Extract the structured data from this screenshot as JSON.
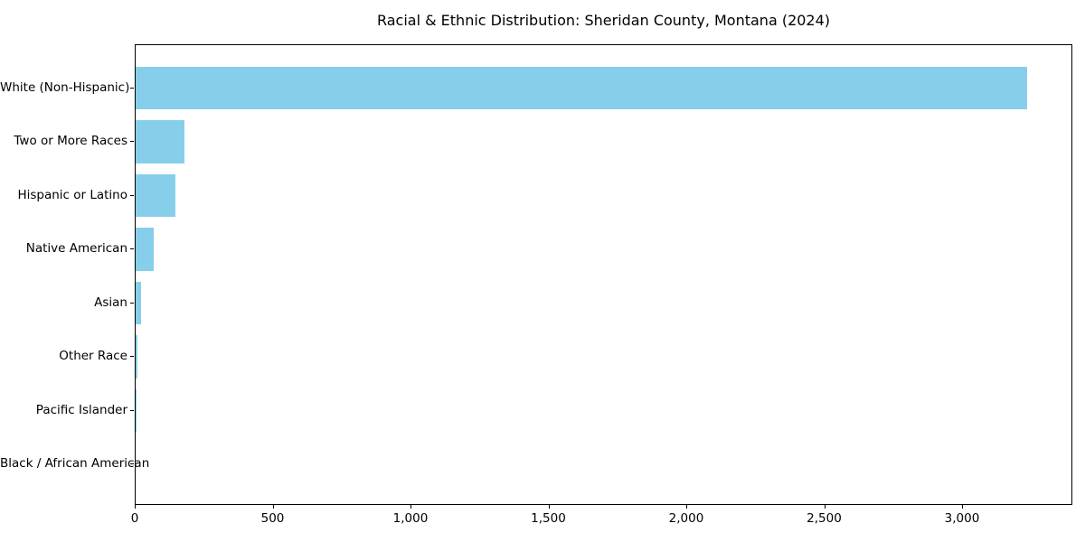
{
  "title": "Racial & Ethnic Distribution: Sheridan County, Montana (2024)",
  "chart_data": {
    "type": "bar",
    "orientation": "horizontal",
    "title": "Racial & Ethnic Distribution: Sheridan County, Montana (2024)",
    "categories": [
      "White (Non-Hispanic)",
      "Two or More Races",
      "Hispanic or Latino",
      "Native American",
      "Asian",
      "Other Race",
      "Pacific Islander",
      "Black / African American"
    ],
    "values": [
      3234,
      176,
      144,
      67,
      21,
      7,
      2,
      0
    ],
    "bar_color": "#87CEEB",
    "xlabel": "",
    "ylabel": "",
    "xlim": [
      0,
      3400
    ],
    "x_ticks": [
      0,
      500,
      1000,
      1500,
      2000,
      2500,
      3000
    ],
    "x_tick_labels": [
      "0",
      "500",
      "1,000",
      "1,500",
      "2,000",
      "2,500",
      "3,000"
    ],
    "grid": false,
    "legend": "none",
    "axis_color": "#000000",
    "background_color": "#ffffff"
  }
}
